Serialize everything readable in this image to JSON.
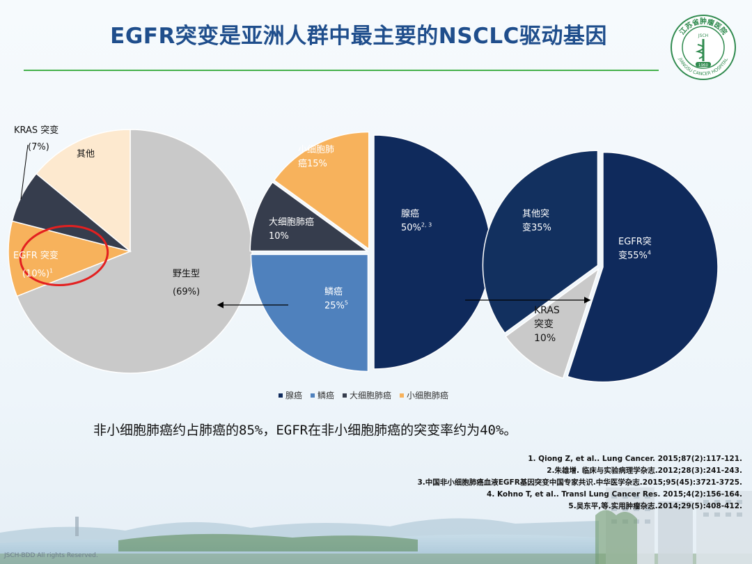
{
  "title": "EGFR突变是亚洲人群中最主要的NSCLC驱动基因",
  "logo": {
    "top_text": "江苏省肿瘤医院",
    "inner_text": "JSCH",
    "year": "1960",
    "bottom_text": "JIANGSU CANCER HOSPITAL"
  },
  "colors": {
    "title": "#1f4e8c",
    "rule": "#43b04a",
    "adenocarcinoma": "#0f2a5c",
    "squamous": "#4f81bd",
    "large_cell": "#363d4d",
    "small_cell": "#f7b25c",
    "wild_type": "#c9c9c9",
    "others": "#fde9cf",
    "egfr": "#f7b25c",
    "kras": "#363d4d",
    "highlight_circle": "#e32020"
  },
  "chart_data": [
    {
      "type": "pie",
      "slices": [
        {
          "label": "野生型",
          "pct": "(69%)",
          "value": 69
        },
        {
          "label": "EGFR 突变",
          "pct": "(10%)",
          "ref": "1",
          "value": 10
        },
        {
          "label": "KRAS 突变",
          "pct": "(7%)",
          "value": 7
        },
        {
          "label": "其他",
          "value": 14
        }
      ]
    },
    {
      "type": "pie",
      "slices": [
        {
          "label": "腺癌",
          "pct": "50%",
          "ref": "2, 3",
          "value": 50
        },
        {
          "label": "鳞癌",
          "pct": "25%",
          "ref": "5",
          "value": 25
        },
        {
          "label": "大细胞肺癌",
          "pct": "10%",
          "value": 10
        },
        {
          "label": "小细胞肺",
          "label2": "癌15%",
          "value": 15
        }
      ],
      "legend": [
        "腺癌",
        "鳞癌",
        "大细胞肺癌",
        "小细胞肺癌"
      ]
    },
    {
      "type": "pie",
      "slices": [
        {
          "label": "EGFR突",
          "label2": "变55%",
          "ref": "4",
          "value": 55
        },
        {
          "label": "KRAS",
          "label2": "突变",
          "label3": "10%",
          "value": 10
        },
        {
          "label": "其他突",
          "label2": "变35%",
          "value": 35
        }
      ]
    }
  ],
  "statement": "非小细胞肺癌约占肺癌的85%，EGFR在非小细胞肺癌的突变率约为40%。",
  "references": [
    "1. Qiong Z, et al.. Lung Cancer. 2015;87(2):117-121.",
    "2.朱雄增. 临床与实验病理学杂志.2012;28(3):241-243.",
    "3.中国非小细胞肺癌血液EGFR基因突变中国专家共识.中华医学杂志.2015;95(45):3721-3725.",
    "4. Kohno T, et al.. Transl Lung Cancer Res. 2015;4(2):156-164.",
    "5.吴东平,等.实用肿瘤杂志.2014;29(5):408-412."
  ],
  "footer": "JSCH-BDD    All rights Reserved."
}
